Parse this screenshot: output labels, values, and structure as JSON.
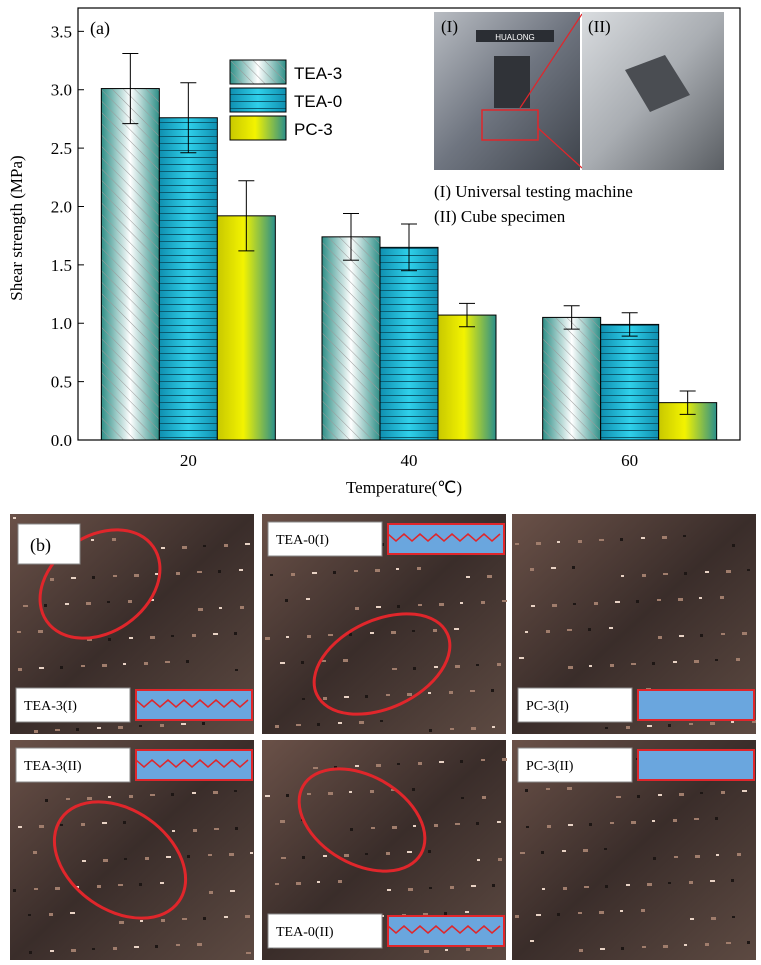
{
  "chart_data": {
    "type": "bar",
    "panel_label": "(a)",
    "categories": [
      "20",
      "40",
      "60"
    ],
    "xlabel": "Temperature(℃)",
    "ylabel": "Shear strength (MPa)",
    "ylim": [
      0,
      3.7
    ],
    "yticks": [
      "0.0",
      "0.5",
      "1.0",
      "1.5",
      "2.0",
      "2.5",
      "3.0",
      "3.5"
    ],
    "legend_position": "upper-center",
    "series": [
      {
        "name": "TEA-3",
        "values": [
          3.01,
          1.74,
          1.05
        ],
        "errors": [
          0.3,
          0.2,
          0.1
        ],
        "color": "#2f8f87",
        "pattern": "diagonal-hatch"
      },
      {
        "name": "TEA-0",
        "values": [
          2.76,
          1.65,
          0.99
        ],
        "errors": [
          0.3,
          0.2,
          0.1
        ],
        "color": "#1fb8d0",
        "pattern": "horizontal-lines"
      },
      {
        "name": "PC-3",
        "values": [
          1.92,
          1.07,
          0.32
        ],
        "errors": [
          0.3,
          0.1,
          0.1
        ],
        "color": "#e6e61a",
        "pattern": "solid-gradient"
      }
    ],
    "inset": {
      "tags": [
        "(I)",
        "(II)"
      ],
      "machine_brand": "HUALONG",
      "captions": [
        "(I) Universal testing machine",
        "(II) Cube specimen"
      ]
    }
  },
  "photo_panel": {
    "panel_label": "(b)",
    "labels": [
      "TEA-3(I)",
      "TEA-0(I)",
      "PC-3(I)",
      "TEA-3(II)",
      "TEA-0(II)",
      "PC-3(II)"
    ]
  },
  "colors": {
    "accent_red": "#e0262b",
    "profile_blue": "#6aa6de"
  }
}
